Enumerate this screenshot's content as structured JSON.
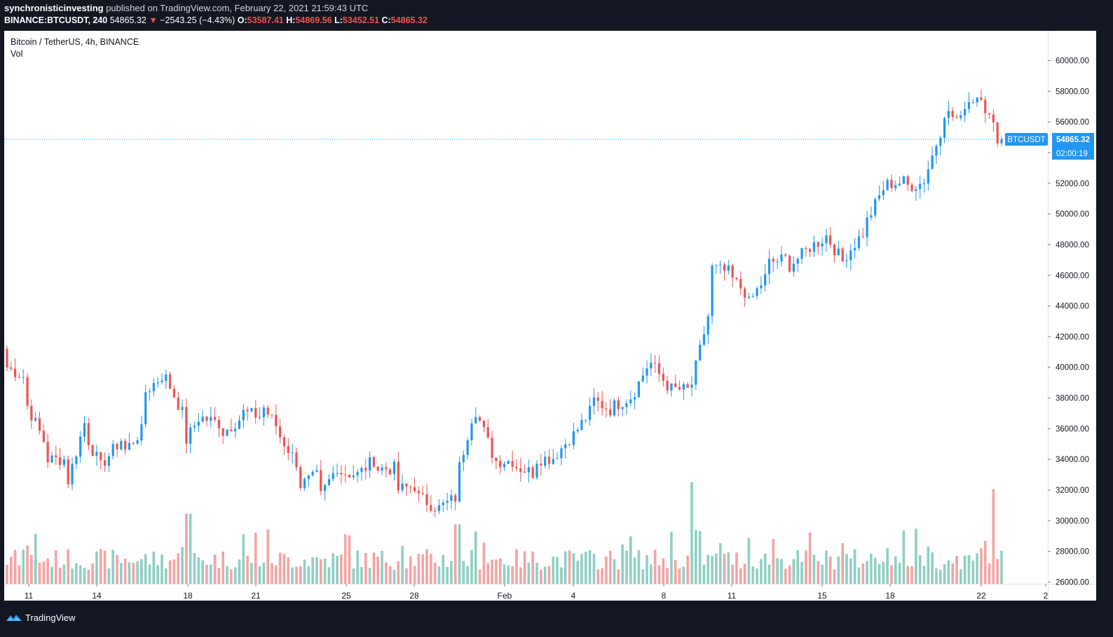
{
  "header": {
    "user": "synchronisticinvesting",
    "published_text": " published on TradingView.com, February 22, 2021 21:59:43 UTC",
    "symbol_line": "BINANCE:BTCUSDT, 240",
    "last_price": "54865.32",
    "change": "−2543.25 (−4.43%)",
    "o_label": "O:",
    "o_value": "53587.41",
    "h_label": "H:",
    "h_value": "54869.56",
    "l_label": "L:",
    "l_value": "53452.51",
    "c_label": "C:",
    "c_value": "54865.32"
  },
  "legend": {
    "title": "Bitcoin / TetherUS, 4h, BINANCE",
    "vol": "Vol"
  },
  "price_tag": {
    "symbol": "BTCUSDT",
    "price": "54865.32",
    "countdown": "02:00:19"
  },
  "footer": {
    "brand": "TradingView",
    "brand_icon": "tradingview-logo-icon"
  },
  "colors": {
    "up": "#2196f3",
    "down": "#ef5350",
    "vol_up": "#8fcfc3",
    "vol_down": "#f5a3a3",
    "bg": "#131722"
  },
  "chart_data": {
    "type": "candlestick",
    "ylim": [
      26000,
      61000
    ],
    "y_ticks": [
      "60000.00",
      "58000.00",
      "56000.00",
      "54000.00",
      "52000.00",
      "50000.00",
      "48000.00",
      "46000.00",
      "44000.00",
      "42000.00",
      "40000.00",
      "38000.00",
      "36000.00",
      "34000.00",
      "32000.00",
      "30000.00",
      "28000.00",
      "26000.00"
    ],
    "x_ticks": [
      "11",
      "14",
      "18",
      "21",
      "25",
      "28",
      "Feb",
      "4",
      "8",
      "11",
      "15",
      "18",
      "22",
      "2"
    ],
    "current_price": 54865.32,
    "series_anchors": [
      [
        41000,
        40000
      ],
      [
        39300,
        37600
      ],
      [
        34900,
        34000
      ],
      [
        34000,
        32000
      ],
      [
        36500,
        35700
      ],
      [
        33000,
        33900
      ],
      [
        35500,
        34500
      ],
      [
        36000,
        38300
      ],
      [
        39500,
        39700
      ],
      [
        37000,
        34800
      ],
      [
        37100,
        36700
      ],
      [
        36300,
        35700
      ],
      [
        36700,
        37100
      ],
      [
        36800,
        37700
      ],
      [
        35800,
        35500
      ],
      [
        33500,
        32300
      ],
      [
        33000,
        31400
      ],
      [
        33700,
        33200
      ],
      [
        33000,
        33000
      ],
      [
        34200,
        33400
      ],
      [
        33400,
        32000
      ],
      [
        32300,
        31600
      ],
      [
        30900,
        30700
      ],
      [
        31500,
        32500
      ],
      [
        37600,
        37300
      ],
      [
        34000,
        33900
      ],
      [
        33900,
        33600
      ],
      [
        33100,
        34000
      ],
      [
        34100,
        34100
      ],
      [
        35600,
        35500
      ],
      [
        37300,
        37900
      ],
      [
        37200,
        37400
      ],
      [
        38100,
        38000
      ],
      [
        40500,
        40300
      ],
      [
        38600,
        38600
      ],
      [
        38500,
        38300
      ],
      [
        43600,
        46500
      ],
      [
        46200,
        46000
      ],
      [
        44700,
        44100
      ],
      [
        46100,
        46800
      ],
      [
        47100,
        46500
      ],
      [
        47600,
        47700
      ],
      [
        48500,
        48600
      ],
      [
        46600,
        47300
      ],
      [
        48900,
        49300
      ],
      [
        51800,
        51900
      ],
      [
        52100,
        51800
      ],
      [
        52000,
        52100
      ],
      [
        55900,
        56700
      ],
      [
        56000,
        57100
      ],
      [
        57900,
        57400
      ],
      [
        54400,
        54865
      ]
    ],
    "annotations": [
      "BTCUSDT 54865.32",
      "02:00:19"
    ]
  }
}
